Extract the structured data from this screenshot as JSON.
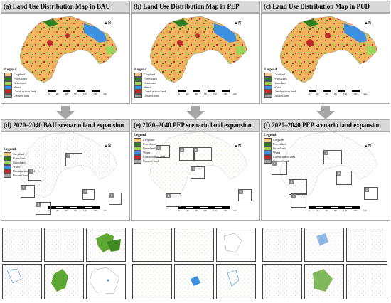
{
  "top_titles": [
    "(a) Land Use Distribution Map in BAU",
    "(b) Land Use Distribution Map in PEP",
    "(c) Land Use Distribution Map in PUD"
  ],
  "mid_titles": [
    "(d) 2020–2040 BAU scenario land expansion",
    "(e) 2020–2040 PEP scenario land expansion",
    "(f) 2020–2040 PEP scenario land expansion"
  ],
  "legend": {
    "title": "Legend",
    "items": [
      {
        "label": "Cropland",
        "color": "#f4c77a"
      },
      {
        "label": "Forestland",
        "color": "#2f7d22"
      },
      {
        "label": "Grassland",
        "color": "#9bd35a"
      },
      {
        "label": "Water",
        "color": "#3d8fe0"
      },
      {
        "label": "Construction land",
        "color": "#c0282b"
      },
      {
        "label": "Unused land",
        "color": "#9d9d9d"
      }
    ]
  },
  "north_label": "N",
  "scale_labels": [
    "0",
    "20",
    "40",
    "80",
    "120",
    "160",
    "km"
  ],
  "box_labels": [
    "a",
    "b",
    "c",
    "d",
    "e",
    "f"
  ]
}
